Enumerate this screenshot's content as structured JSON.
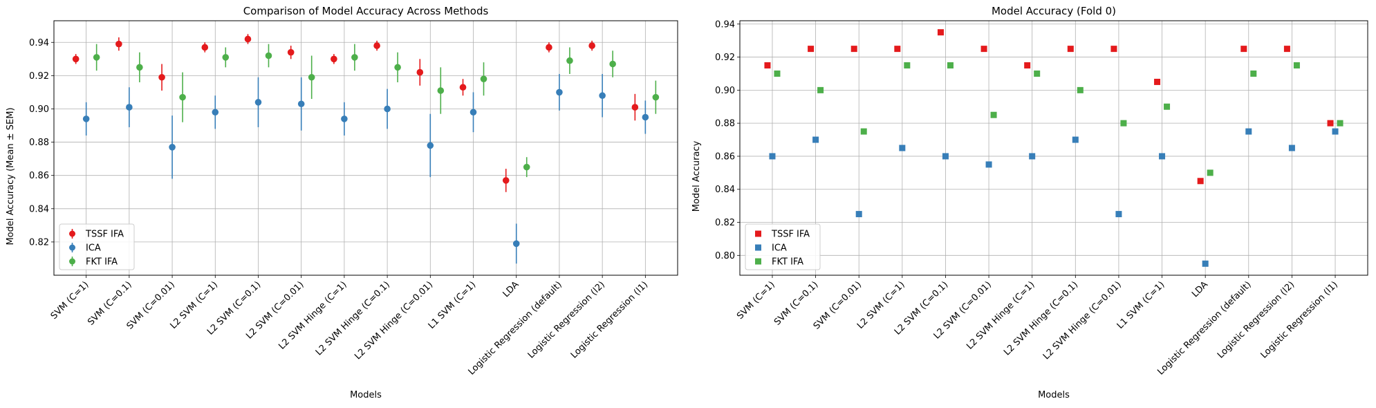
{
  "colors": {
    "TSSF IFA": "#e41a1c",
    "ICA": "#377eb8",
    "FKT IFA": "#4daf4a"
  },
  "chart_data": [
    {
      "type": "scatter",
      "variant": "errorbar",
      "marker": "circle",
      "title": "Comparison of Model Accuracy Across Methods",
      "xlabel": "Models",
      "ylabel": "Model Accuracy (Mean ± SEM)",
      "ylim": [
        0.8,
        0.953
      ],
      "yticks": [
        "0.82",
        "0.84",
        "0.86",
        "0.88",
        "0.90",
        "0.92",
        "0.94"
      ],
      "grid": true,
      "legend_position": "lower-left",
      "categories": [
        "SVM (C=1)",
        "SVM (C=0.1)",
        "SVM (C=0.01)",
        "L2 SVM (C=1)",
        "L2 SVM (C=0.1)",
        "L2 SVM (C=0.01)",
        "L2 SVM Hinge (C=1)",
        "L2 SVM Hinge (C=0.1)",
        "L2 SVM Hinge (C=0.01)",
        "L1 SVM (C=1)",
        "LDA",
        "Logistic Regression (default)",
        "Logistic Regression (l2)",
        "Logistic Regression (l1)"
      ],
      "series": [
        {
          "name": "TSSF IFA",
          "values": [
            0.93,
            0.939,
            0.919,
            0.937,
            0.942,
            0.934,
            0.93,
            0.938,
            0.922,
            0.913,
            0.857,
            0.937,
            0.938,
            0.901
          ],
          "errors": [
            0.003,
            0.004,
            0.008,
            0.003,
            0.003,
            0.004,
            0.003,
            0.003,
            0.008,
            0.005,
            0.007,
            0.003,
            0.003,
            0.008
          ]
        },
        {
          "name": "ICA",
          "values": [
            0.894,
            0.901,
            0.877,
            0.898,
            0.904,
            0.903,
            0.894,
            0.9,
            0.878,
            0.898,
            0.819,
            0.91,
            0.908,
            0.895
          ],
          "errors": [
            0.01,
            0.012,
            0.019,
            0.01,
            0.015,
            0.016,
            0.01,
            0.012,
            0.019,
            0.012,
            0.012,
            0.011,
            0.013,
            0.01
          ]
        },
        {
          "name": "FKT IFA",
          "values": [
            0.931,
            0.925,
            0.907,
            0.931,
            0.932,
            0.919,
            0.931,
            0.925,
            0.911,
            0.918,
            0.865,
            0.929,
            0.927,
            0.907
          ],
          "errors": [
            0.008,
            0.009,
            0.015,
            0.006,
            0.007,
            0.013,
            0.008,
            0.009,
            0.014,
            0.01,
            0.006,
            0.008,
            0.008,
            0.01
          ]
        }
      ]
    },
    {
      "type": "scatter",
      "marker": "square",
      "title": "Model Accuracy (Fold 0)",
      "xlabel": "Models",
      "ylabel": "Model Accuracy",
      "ylim": [
        0.788,
        0.942
      ],
      "yticks": [
        "0.80",
        "0.82",
        "0.84",
        "0.86",
        "0.88",
        "0.90",
        "0.92",
        "0.94"
      ],
      "grid": true,
      "legend_position": "lower-left",
      "categories": [
        "SVM (C=1)",
        "SVM (C=0.1)",
        "SVM (C=0.01)",
        "L2 SVM (C=1)",
        "L2 SVM (C=0.1)",
        "L2 SVM (C=0.01)",
        "L2 SVM Hinge (C=1)",
        "L2 SVM Hinge (C=0.1)",
        "L2 SVM Hinge (C=0.01)",
        "L1 SVM (C=1)",
        "LDA",
        "Logistic Regression (default)",
        "Logistic Regression (l2)",
        "Logistic Regression (l1)"
      ],
      "series": [
        {
          "name": "TSSF IFA",
          "values": [
            0.915,
            0.925,
            0.925,
            0.925,
            0.935,
            0.925,
            0.915,
            0.925,
            0.925,
            0.905,
            0.845,
            0.925,
            0.925,
            0.88
          ]
        },
        {
          "name": "ICA",
          "values": [
            0.86,
            0.87,
            0.825,
            0.865,
            0.86,
            0.855,
            0.86,
            0.87,
            0.825,
            0.86,
            0.795,
            0.875,
            0.865,
            0.875
          ]
        },
        {
          "name": "FKT IFA",
          "values": [
            0.91,
            0.9,
            0.875,
            0.915,
            0.915,
            0.885,
            0.91,
            0.9,
            0.88,
            0.89,
            0.85,
            0.91,
            0.915,
            0.88
          ]
        }
      ]
    }
  ]
}
